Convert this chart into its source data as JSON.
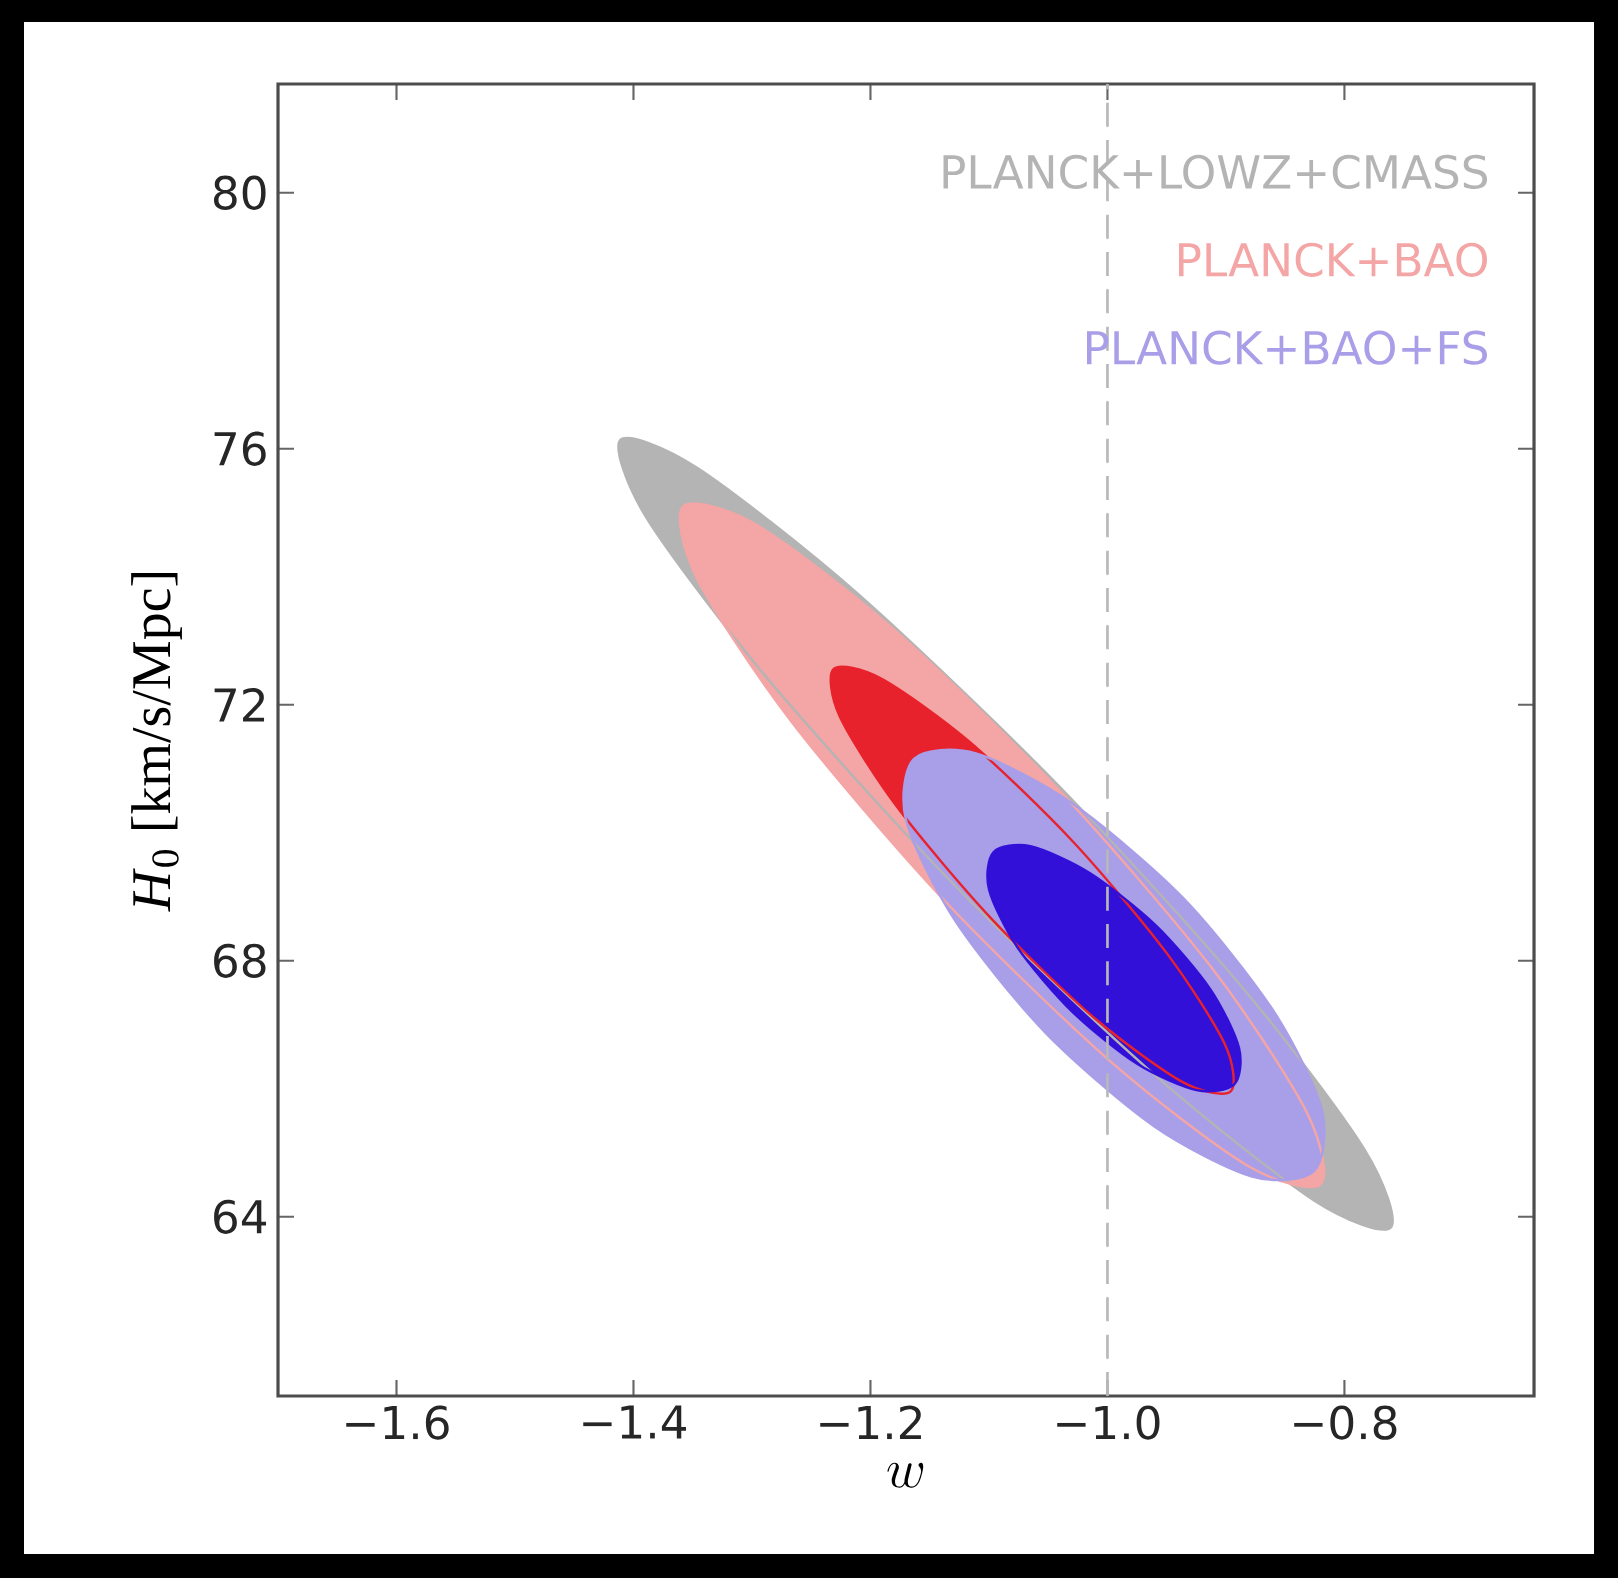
{
  "chart_data": {
    "type": "area",
    "xlabel": "w",
    "ylabel": "*H*$_{0}$ [km/s/Mpc]",
    "xlim": [
      -1.7,
      -0.64
    ],
    "ylim": [
      61.2,
      81.7
    ],
    "xticks": [
      {
        "value": -1.6,
        "label": "−1.6"
      },
      {
        "value": -1.4,
        "label": "−1.4"
      },
      {
        "value": -1.2,
        "label": "−1.2"
      },
      {
        "value": -1.0,
        "label": "−1.0"
      },
      {
        "value": -0.8,
        "label": "−0.8"
      }
    ],
    "yticks": [
      64,
      68,
      72,
      76,
      80
    ],
    "grid": false,
    "legend": "top right",
    "marker": "none",
    "ref_lines": [
      {
        "axis": "x",
        "value": -1.0,
        "color": "#b8b8b8",
        "line_style": "dashed"
      }
    ],
    "series": [
      {
        "name": "PLANCK+LOWZ+CMASS",
        "color": "#b4b4b4",
        "x": [
          -0.761,
          -0.783,
          -0.886,
          -1.043,
          -1.211,
          -1.346,
          -1.411,
          -1.389,
          -1.286,
          -1.13,
          -0.961,
          -0.826
        ],
        "values": [
          63.83,
          65.05,
          67.58,
          70.77,
          73.74,
          75.7,
          76.14,
          74.92,
          72.39,
          69.2,
          66.23,
          64.26
        ]
      },
      {
        "name": "PLANCK+BAO",
        "color": "#f4a5a5",
        "x": [
          -0.82,
          -0.832,
          -0.912,
          -1.04,
          -1.181,
          -1.297,
          -1.358,
          -1.346,
          -1.266,
          -1.138,
          -0.997,
          -0.881
        ],
        "values": [
          64.51,
          65.64,
          67.89,
          70.65,
          73.19,
          74.82,
          75.1,
          73.96,
          71.72,
          68.95,
          66.42,
          64.79
        ]
      },
      {
        "color": "#e8222c",
        "x": [
          -0.896,
          -0.901,
          -0.95,
          -1.029,
          -1.117,
          -1.191,
          -1.231,
          -1.226,
          -1.177,
          -1.098,
          -1.01,
          -0.936
        ],
        "values": [
          65.96,
          66.7,
          68.12,
          69.86,
          71.43,
          72.41,
          72.56,
          71.82,
          70.39,
          68.66,
          67.09,
          66.1
        ]
      },
      {
        "name": "PLANCK+BAO+FS",
        "color": "#a99ee8",
        "x": [
          -0.826,
          -0.819,
          -0.86,
          -0.936,
          -1.029,
          -1.111,
          -1.163,
          -1.17,
          -1.129,
          -1.053,
          -0.961,
          -0.878
        ],
        "values": [
          64.71,
          65.67,
          67.22,
          68.98,
          70.45,
          71.24,
          71.16,
          70.2,
          68.64,
          66.89,
          65.42,
          64.63
        ]
      },
      {
        "color": "#3310d8",
        "x": [
          -0.893,
          -0.889,
          -0.913,
          -0.959,
          -1.015,
          -1.065,
          -1.096,
          -1.1,
          -1.076,
          -1.03,
          -0.975,
          -0.925
        ],
        "values": [
          66.07,
          66.64,
          67.55,
          68.55,
          69.37,
          69.79,
          69.7,
          69.12,
          68.21,
          67.21,
          66.39,
          65.98
        ]
      }
    ]
  }
}
